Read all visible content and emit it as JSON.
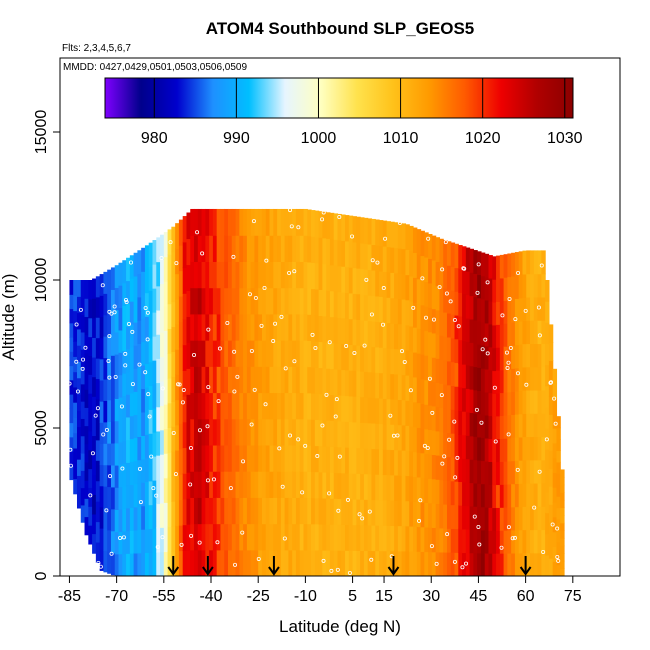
{
  "chart_data": {
    "type": "heatmap",
    "title": "ATOM4 Southbound SLP_GEOS5",
    "flights_note": "Flts: 2,3,4,5,6,7",
    "dates_note": "MMDD: 0427,0429,0501,0503,0506,0509",
    "xlabel": "Latitude (deg N)",
    "ylabel": "Altitude (m)",
    "xlim": [
      -88,
      90
    ],
    "ylim": [
      0,
      17500
    ],
    "x_ticks": [
      -85,
      -70,
      -55,
      -40,
      -25,
      -10,
      5,
      15,
      30,
      45,
      60,
      75
    ],
    "x_tick_labels": [
      "-85",
      "-70",
      "-55",
      "-40",
      "-25",
      "-10",
      "5",
      "15",
      "30",
      "45",
      "60",
      "75"
    ],
    "y_ticks": [
      0,
      5000,
      10000,
      15000
    ],
    "y_tick_labels": [
      "0",
      "5000",
      "10000",
      "15000"
    ],
    "colorbar": {
      "min": 974,
      "max": 1031,
      "ticks": [
        980,
        990,
        1000,
        1010,
        1020,
        1030
      ],
      "tick_labels": [
        "980",
        "990",
        "1000",
        "1010",
        "1020",
        "1030"
      ],
      "colors": [
        "#7f00ff",
        "#00008b",
        "#0000cd",
        "#1e90ff",
        "#00bfff",
        "#e6f5ff",
        "#ffffc0",
        "#ffe24d",
        "#ffc21a",
        "#ff9a00",
        "#ff5a00",
        "#ee0000",
        "#b00000",
        "#8b0000"
      ]
    },
    "arrows_latitude": [
      -52,
      -41,
      -20,
      18,
      60
    ],
    "slp_profile": [
      {
        "lat": -82,
        "slp": 984
      },
      {
        "lat": -77,
        "slp": 982
      },
      {
        "lat": -72,
        "slp": 986
      },
      {
        "lat": -67,
        "slp": 990
      },
      {
        "lat": -62,
        "slp": 988
      },
      {
        "lat": -58,
        "slp": 992
      },
      {
        "lat": -55,
        "slp": 998
      },
      {
        "lat": -52,
        "slp": 1010
      },
      {
        "lat": -48,
        "slp": 1022
      },
      {
        "lat": -44,
        "slp": 1025
      },
      {
        "lat": -40,
        "slp": 1021
      },
      {
        "lat": -36,
        "slp": 1018
      },
      {
        "lat": -32,
        "slp": 1016
      },
      {
        "lat": -28,
        "slp": 1014
      },
      {
        "lat": -24,
        "slp": 1013
      },
      {
        "lat": -18,
        "slp": 1012
      },
      {
        "lat": -10,
        "slp": 1011
      },
      {
        "lat": 0,
        "slp": 1011
      },
      {
        "lat": 10,
        "slp": 1011
      },
      {
        "lat": 20,
        "slp": 1012
      },
      {
        "lat": 28,
        "slp": 1014
      },
      {
        "lat": 33,
        "slp": 1015
      },
      {
        "lat": 38,
        "slp": 1019
      },
      {
        "lat": 42,
        "slp": 1025
      },
      {
        "lat": 45,
        "slp": 1029
      },
      {
        "lat": 48,
        "slp": 1027
      },
      {
        "lat": 51,
        "slp": 1021
      },
      {
        "lat": 55,
        "slp": 1016
      },
      {
        "lat": 60,
        "slp": 1012
      },
      {
        "lat": 65,
        "slp": 1011
      },
      {
        "lat": 70,
        "slp": 1013
      }
    ],
    "coverage_top": [
      {
        "lat": -85,
        "alt": 10000
      },
      {
        "lat": -78,
        "alt": 10000
      },
      {
        "lat": -70,
        "alt": 10500
      },
      {
        "lat": -60,
        "alt": 11200
      },
      {
        "lat": -52,
        "alt": 11800
      },
      {
        "lat": -46,
        "alt": 12400
      },
      {
        "lat": -10,
        "alt": 12400
      },
      {
        "lat": 22,
        "alt": 11900
      },
      {
        "lat": 33,
        "alt": 11400
      },
      {
        "lat": 50,
        "alt": 10800
      },
      {
        "lat": 60,
        "alt": 11000
      },
      {
        "lat": 66,
        "alt": 11000
      },
      {
        "lat": 70,
        "alt": 6000
      },
      {
        "lat": 72,
        "alt": 3000
      }
    ],
    "coverage_bottom": [
      {
        "lat": -85,
        "alt": 3500
      },
      {
        "lat": -80,
        "alt": 1500
      },
      {
        "lat": -75,
        "alt": 200
      },
      {
        "lat": -70,
        "alt": 0
      },
      {
        "lat": 72,
        "alt": 0
      }
    ]
  }
}
